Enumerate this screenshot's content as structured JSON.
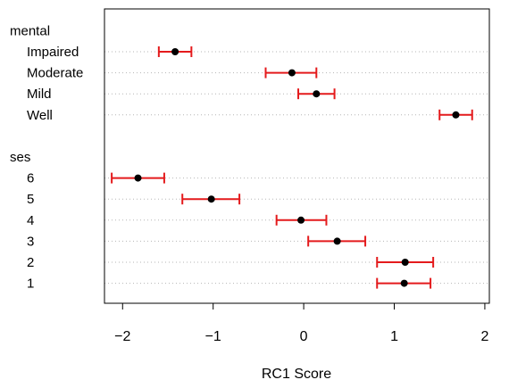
{
  "chart_data": {
    "type": "dotplot-errorbar",
    "title": "",
    "xlabel": "RC1 Score",
    "ylabel": "",
    "xlim": [
      -2.2,
      2.05
    ],
    "x_ticks": [
      -2,
      -1,
      0,
      1,
      2
    ],
    "x_tick_labels": [
      "−2",
      "−1",
      "0",
      "1",
      "2"
    ],
    "grid": "dotted horizontal guide lines per row",
    "point_color": "#000000",
    "errorbar_color": "#e41a1c",
    "groups": [
      {
        "name": "mental",
        "items": [
          {
            "label": "Impaired",
            "value": -1.42,
            "lower": -1.6,
            "upper": -1.24
          },
          {
            "label": "Moderate",
            "value": -0.13,
            "lower": -0.42,
            "upper": 0.14
          },
          {
            "label": "Mild",
            "value": 0.14,
            "lower": -0.06,
            "upper": 0.34
          },
          {
            "label": "Well",
            "value": 1.68,
            "lower": 1.5,
            "upper": 1.86
          }
        ]
      },
      {
        "name": "ses",
        "items": [
          {
            "label": "6",
            "value": -1.83,
            "lower": -2.12,
            "upper": -1.54
          },
          {
            "label": "5",
            "value": -1.02,
            "lower": -1.34,
            "upper": -0.71
          },
          {
            "label": "4",
            "value": -0.03,
            "lower": -0.3,
            "upper": 0.25
          },
          {
            "label": "3",
            "value": 0.37,
            "lower": 0.05,
            "upper": 0.68
          },
          {
            "label": "2",
            "value": 1.12,
            "lower": 0.81,
            "upper": 1.43
          },
          {
            "label": "1",
            "value": 1.11,
            "lower": 0.81,
            "upper": 1.4
          }
        ]
      }
    ]
  }
}
